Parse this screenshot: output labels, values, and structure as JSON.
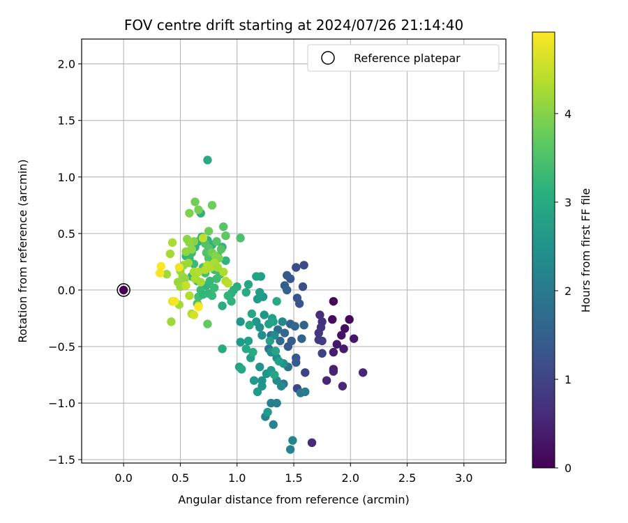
{
  "chart_data": {
    "type": "scatter",
    "title": "FOV centre drift starting at 2024/07/26 21:14:40",
    "xlabel": "Angular distance from reference (arcmin)",
    "ylabel": "Rotation from reference (arcmin)",
    "xlim": [
      -0.37,
      3.37
    ],
    "ylim": [
      -1.53,
      2.22
    ],
    "xticks": [
      0.0,
      0.5,
      1.0,
      1.5,
      2.0,
      2.5,
      3.0
    ],
    "xtick_labels": [
      "0.0",
      "0.5",
      "1.0",
      "1.5",
      "2.0",
      "2.5",
      "3.0"
    ],
    "yticks": [
      -1.5,
      -1.0,
      -0.5,
      0.0,
      0.5,
      1.0,
      1.5,
      2.0
    ],
    "ytick_labels": [
      "−1.5",
      "−1.0",
      "−0.5",
      "0.0",
      "0.5",
      "1.0",
      "1.5",
      "2.0"
    ],
    "grid": true,
    "legend": {
      "placement": "top-right",
      "entries": [
        "Reference platepar"
      ]
    },
    "reference_point": {
      "x": 0.0,
      "y": 0.0,
      "label": "Reference platepar"
    },
    "colorbar": {
      "label": "Hours from first FF file",
      "colormap": "viridis",
      "range": [
        0,
        4.92
      ],
      "ticks": [
        0,
        1,
        2,
        3,
        4
      ],
      "tick_labels": [
        "0",
        "1",
        "2",
        "3",
        "4"
      ]
    },
    "series": [
      {
        "points": [
          {
            "x": 1.85,
            "y": -0.1,
            "c": 0.05
          },
          {
            "x": 1.99,
            "y": -0.26,
            "c": 0.1
          },
          {
            "x": 1.84,
            "y": -0.26,
            "c": 0.15
          },
          {
            "x": 1.95,
            "y": -0.34,
            "c": 0.2
          },
          {
            "x": 1.92,
            "y": -0.4,
            "c": 0.25
          },
          {
            "x": 2.03,
            "y": -0.43,
            "c": 0.3
          },
          {
            "x": 1.88,
            "y": -0.48,
            "c": 0.3
          },
          {
            "x": 1.94,
            "y": -0.52,
            "c": 0.35
          },
          {
            "x": 1.85,
            "y": -0.55,
            "c": 0.4
          },
          {
            "x": 1.85,
            "y": -0.7,
            "c": 0.4
          },
          {
            "x": 1.85,
            "y": -0.72,
            "c": 0.45
          },
          {
            "x": 2.11,
            "y": -0.73,
            "c": 0.5
          },
          {
            "x": 1.79,
            "y": -0.8,
            "c": 0.5
          },
          {
            "x": 1.93,
            "y": -0.85,
            "c": 0.55
          },
          {
            "x": 1.66,
            "y": -1.35,
            "c": 0.6
          },
          {
            "x": 1.73,
            "y": -0.22,
            "c": 0.65
          },
          {
            "x": 1.75,
            "y": -0.28,
            "c": 0.7
          },
          {
            "x": 1.74,
            "y": -0.33,
            "c": 0.75
          },
          {
            "x": 1.72,
            "y": -0.38,
            "c": 0.8
          },
          {
            "x": 1.72,
            "y": -0.44,
            "c": 0.85
          },
          {
            "x": 1.75,
            "y": -0.45,
            "c": 0.9
          },
          {
            "x": 1.75,
            "y": -0.56,
            "c": 0.95
          },
          {
            "x": 1.6,
            "y": -0.73,
            "c": 1.0
          },
          {
            "x": 1.53,
            "y": -0.87,
            "c": 1.05
          },
          {
            "x": 1.59,
            "y": 0.22,
            "c": 1.1
          },
          {
            "x": 1.52,
            "y": 0.2,
            "c": 1.15
          },
          {
            "x": 1.58,
            "y": 0.03,
            "c": 1.2
          },
          {
            "x": 1.53,
            "y": -0.07,
            "c": 1.25
          },
          {
            "x": 1.55,
            "y": -0.12,
            "c": 1.3
          },
          {
            "x": 1.47,
            "y": 0.1,
            "c": 1.35
          },
          {
            "x": 1.44,
            "y": 0.13,
            "c": 1.4
          },
          {
            "x": 1.42,
            "y": 0.04,
            "c": 1.45
          },
          {
            "x": 1.44,
            "y": 0.0,
            "c": 1.5
          },
          {
            "x": 1.47,
            "y": -0.3,
            "c": 1.55
          },
          {
            "x": 1.51,
            "y": -0.32,
            "c": 1.6
          },
          {
            "x": 1.59,
            "y": -0.31,
            "c": 1.55
          },
          {
            "x": 1.57,
            "y": -0.43,
            "c": 1.5
          },
          {
            "x": 1.48,
            "y": -0.45,
            "c": 1.45
          },
          {
            "x": 1.45,
            "y": -0.5,
            "c": 1.4
          },
          {
            "x": 1.52,
            "y": -0.6,
            "c": 1.35
          },
          {
            "x": 1.52,
            "y": -0.64,
            "c": 1.4
          },
          {
            "x": 1.42,
            "y": -0.38,
            "c": 1.65
          },
          {
            "x": 1.38,
            "y": -0.45,
            "c": 1.7
          },
          {
            "x": 1.36,
            "y": -0.35,
            "c": 1.75
          },
          {
            "x": 1.3,
            "y": -0.4,
            "c": 1.8
          },
          {
            "x": 1.28,
            "y": -0.52,
            "c": 1.85
          },
          {
            "x": 1.45,
            "y": -0.68,
            "c": 1.9
          },
          {
            "x": 1.41,
            "y": -0.83,
            "c": 1.95
          },
          {
            "x": 1.56,
            "y": -0.91,
            "c": 2.0
          },
          {
            "x": 1.6,
            "y": -0.9,
            "c": 2.05
          },
          {
            "x": 1.35,
            "y": -1.0,
            "c": 2.1
          },
          {
            "x": 1.3,
            "y": -1.0,
            "c": 2.15
          },
          {
            "x": 1.25,
            "y": -1.12,
            "c": 2.2
          },
          {
            "x": 1.32,
            "y": -1.19,
            "c": 2.2
          },
          {
            "x": 1.49,
            "y": -1.33,
            "c": 2.25
          },
          {
            "x": 1.47,
            "y": -1.41,
            "c": 2.2
          },
          {
            "x": 1.39,
            "y": -0.85,
            "c": 2.3
          },
          {
            "x": 1.35,
            "y": -0.8,
            "c": 2.35
          },
          {
            "x": 1.35,
            "y": -0.6,
            "c": 2.4
          },
          {
            "x": 1.3,
            "y": -0.55,
            "c": 2.45
          },
          {
            "x": 1.22,
            "y": -0.8,
            "c": 2.5
          },
          {
            "x": 1.22,
            "y": -0.85,
            "c": 2.55
          },
          {
            "x": 1.2,
            "y": -0.68,
            "c": 2.55
          },
          {
            "x": 1.26,
            "y": -0.74,
            "c": 2.6
          },
          {
            "x": 1.3,
            "y": -0.71,
            "c": 2.65
          },
          {
            "x": 1.15,
            "y": -0.8,
            "c": 2.65
          },
          {
            "x": 1.18,
            "y": -0.9,
            "c": 2.7
          },
          {
            "x": 1.27,
            "y": -1.08,
            "c": 2.7
          },
          {
            "x": 1.41,
            "y": -0.65,
            "c": 2.5
          },
          {
            "x": 1.4,
            "y": -0.28,
            "c": 2.3
          },
          {
            "x": 1.33,
            "y": -0.4,
            "c": 2.35
          },
          {
            "x": 1.22,
            "y": -0.4,
            "c": 2.45
          },
          {
            "x": 1.2,
            "y": -0.33,
            "c": 2.5
          },
          {
            "x": 1.17,
            "y": -0.28,
            "c": 2.55
          },
          {
            "x": 1.24,
            "y": -0.22,
            "c": 2.6
          },
          {
            "x": 1.23,
            "y": -0.06,
            "c": 2.65
          },
          {
            "x": 1.18,
            "y": -0.08,
            "c": 2.7
          },
          {
            "x": 1.2,
            "y": -0.02,
            "c": 2.75
          },
          {
            "x": 1.21,
            "y": 0.12,
            "c": 2.8
          },
          {
            "x": 1.17,
            "y": 0.12,
            "c": 2.85
          },
          {
            "x": 1.1,
            "y": 0.05,
            "c": 2.9
          },
          {
            "x": 1.03,
            "y": -0.28,
            "c": 2.6
          },
          {
            "x": 1.03,
            "y": -0.46,
            "c": 2.7
          },
          {
            "x": 1.1,
            "y": -0.45,
            "c": 2.75
          },
          {
            "x": 1.12,
            "y": -0.6,
            "c": 2.8
          },
          {
            "x": 1.02,
            "y": -0.68,
            "c": 2.85
          },
          {
            "x": 1.04,
            "y": -0.7,
            "c": 2.9
          },
          {
            "x": 1.08,
            "y": -0.52,
            "c": 2.95
          },
          {
            "x": 1.11,
            "y": -0.31,
            "c": 2.95
          },
          {
            "x": 1.13,
            "y": -0.21,
            "c": 2.9
          },
          {
            "x": 1.14,
            "y": -0.55,
            "c": 3.0
          },
          {
            "x": 1.29,
            "y": -0.45,
            "c": 2.8
          },
          {
            "x": 1.34,
            "y": -0.54,
            "c": 2.85
          },
          {
            "x": 1.37,
            "y": -0.63,
            "c": 2.75
          },
          {
            "x": 1.33,
            "y": -0.75,
            "c": 2.9
          },
          {
            "x": 1.31,
            "y": -0.25,
            "c": 2.75
          },
          {
            "x": 1.28,
            "y": -0.3,
            "c": 2.8
          },
          {
            "x": 1.32,
            "y": -0.28,
            "c": 2.85
          },
          {
            "x": 1.35,
            "y": -0.1,
            "c": 2.95
          },
          {
            "x": 1.08,
            "y": -0.02,
            "c": 3.0
          },
          {
            "x": 1.0,
            "y": 0.03,
            "c": 3.05
          },
          {
            "x": 0.97,
            "y": 0.0,
            "c": 3.1
          },
          {
            "x": 0.95,
            "y": -0.03,
            "c": 3.1
          },
          {
            "x": 0.95,
            "y": -0.1,
            "c": 3.15
          },
          {
            "x": 0.92,
            "y": -0.05,
            "c": 3.2
          },
          {
            "x": 0.87,
            "y": -0.14,
            "c": 3.05
          },
          {
            "x": 0.87,
            "y": -0.52,
            "c": 3.0
          },
          {
            "x": 0.74,
            "y": 1.15,
            "c": 3.0
          },
          {
            "x": 0.68,
            "y": 0.68,
            "c": 3.1
          },
          {
            "x": 0.66,
            "y": 0.43,
            "c": 3.15
          },
          {
            "x": 0.69,
            "y": 0.47,
            "c": 3.05
          },
          {
            "x": 0.74,
            "y": 0.44,
            "c": 3.1
          },
          {
            "x": 0.78,
            "y": 0.4,
            "c": 3.15
          },
          {
            "x": 0.83,
            "y": 0.3,
            "c": 3.2
          },
          {
            "x": 0.87,
            "y": 0.38,
            "c": 3.15
          },
          {
            "x": 0.9,
            "y": 0.26,
            "c": 3.2
          },
          {
            "x": 0.63,
            "y": 0.38,
            "c": 3.2
          },
          {
            "x": 0.55,
            "y": 0.3,
            "c": 3.25
          },
          {
            "x": 0.58,
            "y": 0.28,
            "c": 3.3
          },
          {
            "x": 0.6,
            "y": 0.33,
            "c": 3.35
          },
          {
            "x": 0.62,
            "y": 0.23,
            "c": 3.35
          },
          {
            "x": 0.6,
            "y": 0.12,
            "c": 3.25
          },
          {
            "x": 0.65,
            "y": 0.08,
            "c": 3.3
          },
          {
            "x": 0.68,
            "y": 0.0,
            "c": 3.35
          },
          {
            "x": 0.66,
            "y": -0.06,
            "c": 3.4
          },
          {
            "x": 0.65,
            "y": -0.12,
            "c": 3.45
          },
          {
            "x": 0.7,
            "y": -0.04,
            "c": 3.25
          },
          {
            "x": 0.73,
            "y": 0.04,
            "c": 3.2
          },
          {
            "x": 0.76,
            "y": 0.08,
            "c": 3.3
          },
          {
            "x": 0.75,
            "y": -0.03,
            "c": 3.25
          },
          {
            "x": 0.78,
            "y": -0.05,
            "c": 3.3
          },
          {
            "x": 0.8,
            "y": 0.02,
            "c": 3.35
          },
          {
            "x": 0.82,
            "y": 0.1,
            "c": 3.4
          },
          {
            "x": 0.85,
            "y": 0.14,
            "c": 3.45
          },
          {
            "x": 0.8,
            "y": 0.18,
            "c": 3.4
          },
          {
            "x": 0.72,
            "y": 0.15,
            "c": 3.45
          },
          {
            "x": 0.7,
            "y": 0.2,
            "c": 3.5
          },
          {
            "x": 0.75,
            "y": 0.28,
            "c": 3.5
          },
          {
            "x": 0.73,
            "y": 0.33,
            "c": 3.55
          },
          {
            "x": 0.75,
            "y": 0.37,
            "c": 3.6
          },
          {
            "x": 0.72,
            "y": 0.41,
            "c": 3.55
          },
          {
            "x": 0.82,
            "y": 0.43,
            "c": 3.6
          },
          {
            "x": 0.88,
            "y": 0.56,
            "c": 3.6
          },
          {
            "x": 0.9,
            "y": 0.48,
            "c": 3.65
          },
          {
            "x": 0.86,
            "y": 0.36,
            "c": 3.6
          },
          {
            "x": 1.03,
            "y": 0.46,
            "c": 3.5
          },
          {
            "x": 0.74,
            "y": -0.3,
            "c": 3.7
          },
          {
            "x": 0.78,
            "y": 0.75,
            "c": 3.8
          },
          {
            "x": 0.63,
            "y": 0.78,
            "c": 3.85
          },
          {
            "x": 0.66,
            "y": 0.71,
            "c": 3.9
          },
          {
            "x": 0.58,
            "y": 0.68,
            "c": 3.95
          },
          {
            "x": 0.75,
            "y": 0.52,
            "c": 3.8
          },
          {
            "x": 0.78,
            "y": 0.33,
            "c": 3.85
          },
          {
            "x": 0.8,
            "y": 0.24,
            "c": 3.9
          },
          {
            "x": 0.84,
            "y": 0.28,
            "c": 3.95
          },
          {
            "x": 0.81,
            "y": 0.3,
            "c": 4.0
          },
          {
            "x": 0.62,
            "y": 0.43,
            "c": 4.0
          },
          {
            "x": 0.56,
            "y": 0.45,
            "c": 4.05
          },
          {
            "x": 0.58,
            "y": 0.42,
            "c": 4.1
          },
          {
            "x": 0.6,
            "y": 0.36,
            "c": 4.05
          },
          {
            "x": 0.55,
            "y": 0.34,
            "c": 4.1
          },
          {
            "x": 0.53,
            "y": 0.22,
            "c": 4.15
          },
          {
            "x": 0.57,
            "y": 0.24,
            "c": 4.2
          },
          {
            "x": 0.5,
            "y": 0.17,
            "c": 4.15
          },
          {
            "x": 0.52,
            "y": 0.12,
            "c": 4.2
          },
          {
            "x": 0.54,
            "y": 0.1,
            "c": 4.1
          },
          {
            "x": 0.48,
            "y": 0.07,
            "c": 4.15
          },
          {
            "x": 0.5,
            "y": 0.03,
            "c": 4.2
          },
          {
            "x": 0.49,
            "y": -0.13,
            "c": 4.25
          },
          {
            "x": 0.42,
            "y": -0.28,
            "c": 4.2
          },
          {
            "x": 0.43,
            "y": 0.42,
            "c": 4.3
          },
          {
            "x": 0.41,
            "y": 0.32,
            "c": 4.25
          },
          {
            "x": 0.38,
            "y": 0.14,
            "c": 4.2
          },
          {
            "x": 0.62,
            "y": 0.16,
            "c": 4.3
          },
          {
            "x": 0.66,
            "y": 0.16,
            "c": 4.35
          },
          {
            "x": 0.63,
            "y": 0.1,
            "c": 4.3
          },
          {
            "x": 0.68,
            "y": 0.07,
            "c": 4.25
          },
          {
            "x": 0.72,
            "y": 0.18,
            "c": 4.35
          },
          {
            "x": 0.74,
            "y": 0.22,
            "c": 4.4
          },
          {
            "x": 0.77,
            "y": 0.2,
            "c": 4.35
          },
          {
            "x": 0.8,
            "y": 0.24,
            "c": 4.3
          },
          {
            "x": 0.83,
            "y": 0.2,
            "c": 4.25
          },
          {
            "x": 0.88,
            "y": 0.16,
            "c": 4.3
          },
          {
            "x": 0.9,
            "y": 0.08,
            "c": 4.35
          },
          {
            "x": 0.92,
            "y": 0.06,
            "c": 4.4
          },
          {
            "x": 0.6,
            "y": -0.21,
            "c": 4.3
          },
          {
            "x": 0.66,
            "y": -0.14,
            "c": 4.4
          },
          {
            "x": 0.58,
            "y": -0.05,
            "c": 4.35
          },
          {
            "x": 0.7,
            "y": 0.46,
            "c": 4.45
          },
          {
            "x": 0.55,
            "y": 0.04,
            "c": 4.5
          },
          {
            "x": 0.62,
            "y": -0.22,
            "c": 4.6
          },
          {
            "x": 0.43,
            "y": -0.1,
            "c": 4.75
          },
          {
            "x": 0.45,
            "y": -0.1,
            "c": 4.85
          },
          {
            "x": 0.66,
            "y": -0.15,
            "c": 4.9
          },
          {
            "x": 0.33,
            "y": 0.21,
            "c": 4.9
          },
          {
            "x": 0.32,
            "y": 0.15,
            "c": 4.85
          },
          {
            "x": 0.49,
            "y": 0.2,
            "c": 4.8
          }
        ]
      }
    ]
  }
}
